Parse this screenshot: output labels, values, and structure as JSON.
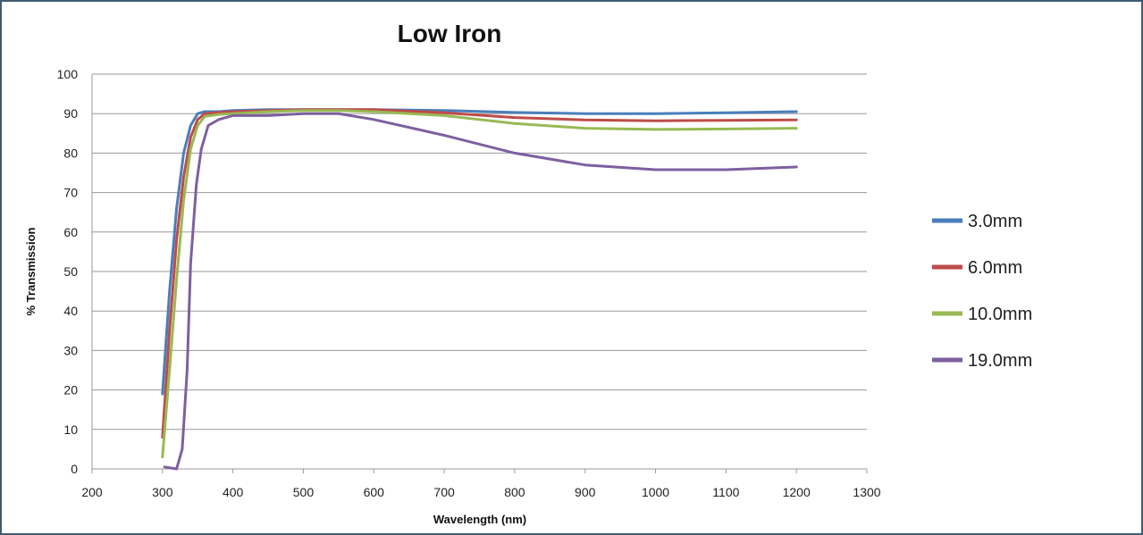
{
  "chart_data": {
    "type": "line",
    "title": "Low Iron",
    "xlabel": "Wavelength (nm)",
    "ylabel": "% Transmission",
    "xlim": [
      200,
      1300
    ],
    "ylim": [
      0,
      100
    ],
    "xticks": [
      200,
      300,
      400,
      500,
      600,
      700,
      800,
      900,
      1000,
      1100,
      1200,
      1300
    ],
    "yticks": [
      0,
      10,
      20,
      30,
      40,
      50,
      60,
      70,
      80,
      90,
      100
    ],
    "grid": "horizontal",
    "legend_position": "right",
    "series": [
      {
        "name": "3.0mm",
        "color": "#4a7ebb",
        "points": [
          [
            300,
            19
          ],
          [
            310,
            45
          ],
          [
            320,
            66
          ],
          [
            330,
            80
          ],
          [
            340,
            87
          ],
          [
            350,
            90
          ],
          [
            360,
            90.5
          ],
          [
            380,
            90.5
          ],
          [
            400,
            90.8
          ],
          [
            450,
            91
          ],
          [
            500,
            91
          ],
          [
            550,
            91
          ],
          [
            600,
            91
          ],
          [
            700,
            90.8
          ],
          [
            800,
            90.3
          ],
          [
            900,
            90
          ],
          [
            1000,
            90
          ],
          [
            1100,
            90.2
          ],
          [
            1200,
            90.5
          ]
        ]
      },
      {
        "name": "6.0mm",
        "color": "#be4b48",
        "points": [
          [
            300,
            8
          ],
          [
            310,
            35
          ],
          [
            320,
            58
          ],
          [
            330,
            74
          ],
          [
            340,
            84
          ],
          [
            350,
            88.5
          ],
          [
            360,
            90
          ],
          [
            380,
            90.3
          ],
          [
            400,
            90.5
          ],
          [
            450,
            90.8
          ],
          [
            500,
            91
          ],
          [
            550,
            91
          ],
          [
            600,
            91
          ],
          [
            700,
            90.2
          ],
          [
            800,
            89
          ],
          [
            900,
            88.4
          ],
          [
            1000,
            88.2
          ],
          [
            1100,
            88.3
          ],
          [
            1200,
            88.4
          ]
        ]
      },
      {
        "name": "10.0mm",
        "color": "#98b954",
        "points": [
          [
            300,
            3
          ],
          [
            310,
            25
          ],
          [
            320,
            48
          ],
          [
            330,
            68
          ],
          [
            340,
            81
          ],
          [
            350,
            87
          ],
          [
            360,
            89.3
          ],
          [
            380,
            89.8
          ],
          [
            400,
            90
          ],
          [
            450,
            90.5
          ],
          [
            500,
            90.8
          ],
          [
            550,
            90.8
          ],
          [
            600,
            90.5
          ],
          [
            700,
            89.5
          ],
          [
            800,
            87.5
          ],
          [
            900,
            86.3
          ],
          [
            1000,
            86
          ],
          [
            1100,
            86.1
          ],
          [
            1200,
            86.3
          ]
        ]
      },
      {
        "name": "19.0mm",
        "color": "#7d60a0",
        "points": [
          [
            303,
            0.5
          ],
          [
            320,
            0
          ],
          [
            328,
            5
          ],
          [
            335,
            25
          ],
          [
            340,
            52
          ],
          [
            348,
            72
          ],
          [
            355,
            81
          ],
          [
            365,
            87
          ],
          [
            380,
            88.5
          ],
          [
            400,
            89.5
          ],
          [
            450,
            89.5
          ],
          [
            500,
            90
          ],
          [
            550,
            90
          ],
          [
            600,
            88.5
          ],
          [
            700,
            84.5
          ],
          [
            800,
            80
          ],
          [
            900,
            77
          ],
          [
            1000,
            75.8
          ],
          [
            1100,
            75.8
          ],
          [
            1200,
            76.5
          ]
        ]
      }
    ]
  }
}
